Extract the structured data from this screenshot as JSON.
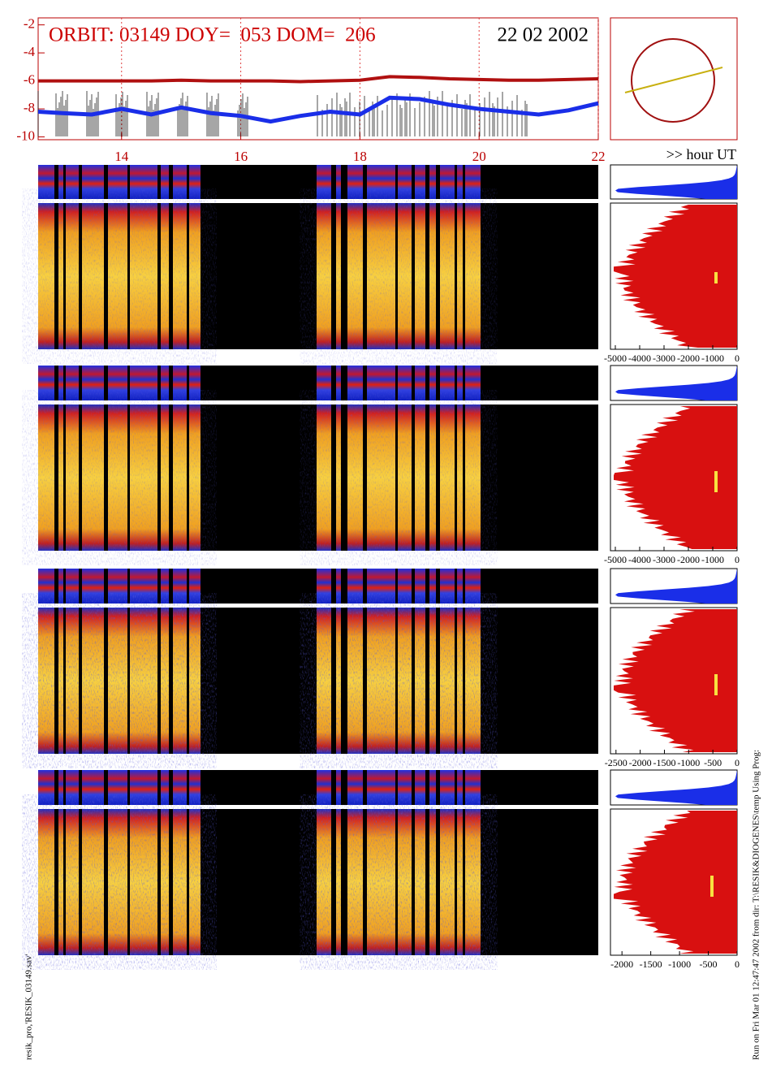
{
  "chart_data": {
    "type": "line",
    "title": "ORBIT: 03149 DOY=  053 DOM=  206",
    "date": "22 02 2002",
    "xlabel": ">> hour UT",
    "xlim": [
      12.6,
      22
    ],
    "xticks": [
      14,
      16,
      18,
      20,
      22
    ],
    "ylim": [
      -1.5,
      -10.2
    ],
    "yticks": [
      -2,
      -4,
      -6,
      -8,
      -10
    ],
    "grid": true,
    "x": [
      12.6,
      13,
      13.5,
      14,
      14.5,
      15,
      15.5,
      16,
      16.5,
      17,
      17.5,
      18,
      18.5,
      19,
      19.5,
      20,
      20.5,
      21,
      21.5,
      22
    ],
    "series": [
      {
        "color": "#b01010",
        "values": [
          -6.0,
          -6.0,
          -6.0,
          -6.0,
          -6.0,
          -5.95,
          -6.0,
          -6.0,
          -6.0,
          -6.05,
          -6.0,
          -5.95,
          -5.7,
          -5.75,
          -5.85,
          -5.9,
          -5.95,
          -5.95,
          -5.9,
          -5.85
        ]
      },
      {
        "color": "#1a2ee8",
        "values": [
          -8.2,
          -8.3,
          -8.4,
          -8.0,
          -8.4,
          -7.9,
          -8.3,
          -8.5,
          -8.9,
          -8.5,
          -8.2,
          -8.4,
          -7.2,
          -7.3,
          -7.7,
          -8.0,
          -8.2,
          -8.4,
          -8.1,
          -7.6
        ]
      }
    ]
  },
  "side_panels": [
    {
      "xlim": [
        -5200,
        0
      ],
      "xticks": [
        -5000,
        -4000,
        -3000,
        -2000,
        -1000,
        0
      ]
    },
    {
      "xlim": [
        -5200,
        0
      ],
      "xticks": [
        -5000,
        -4000,
        -3000,
        -2000,
        -1000,
        0
      ]
    },
    {
      "xlim": [
        -2614,
        0
      ],
      "xticks": [
        -2500,
        -2000,
        -1500,
        -1000,
        -500,
        0
      ]
    },
    {
      "xlim": [
        -2200,
        0
      ],
      "xticks": [
        -2000,
        -1500,
        -1000,
        -500,
        0
      ]
    }
  ],
  "footer": {
    "run": "Run on Fri Mar 01 12:47:47 2002  from dir: T:\\RESIK&DIOGENES\\temp Using Prog:",
    "prog": "resik_pro,'RESIK_03149.sav'"
  }
}
